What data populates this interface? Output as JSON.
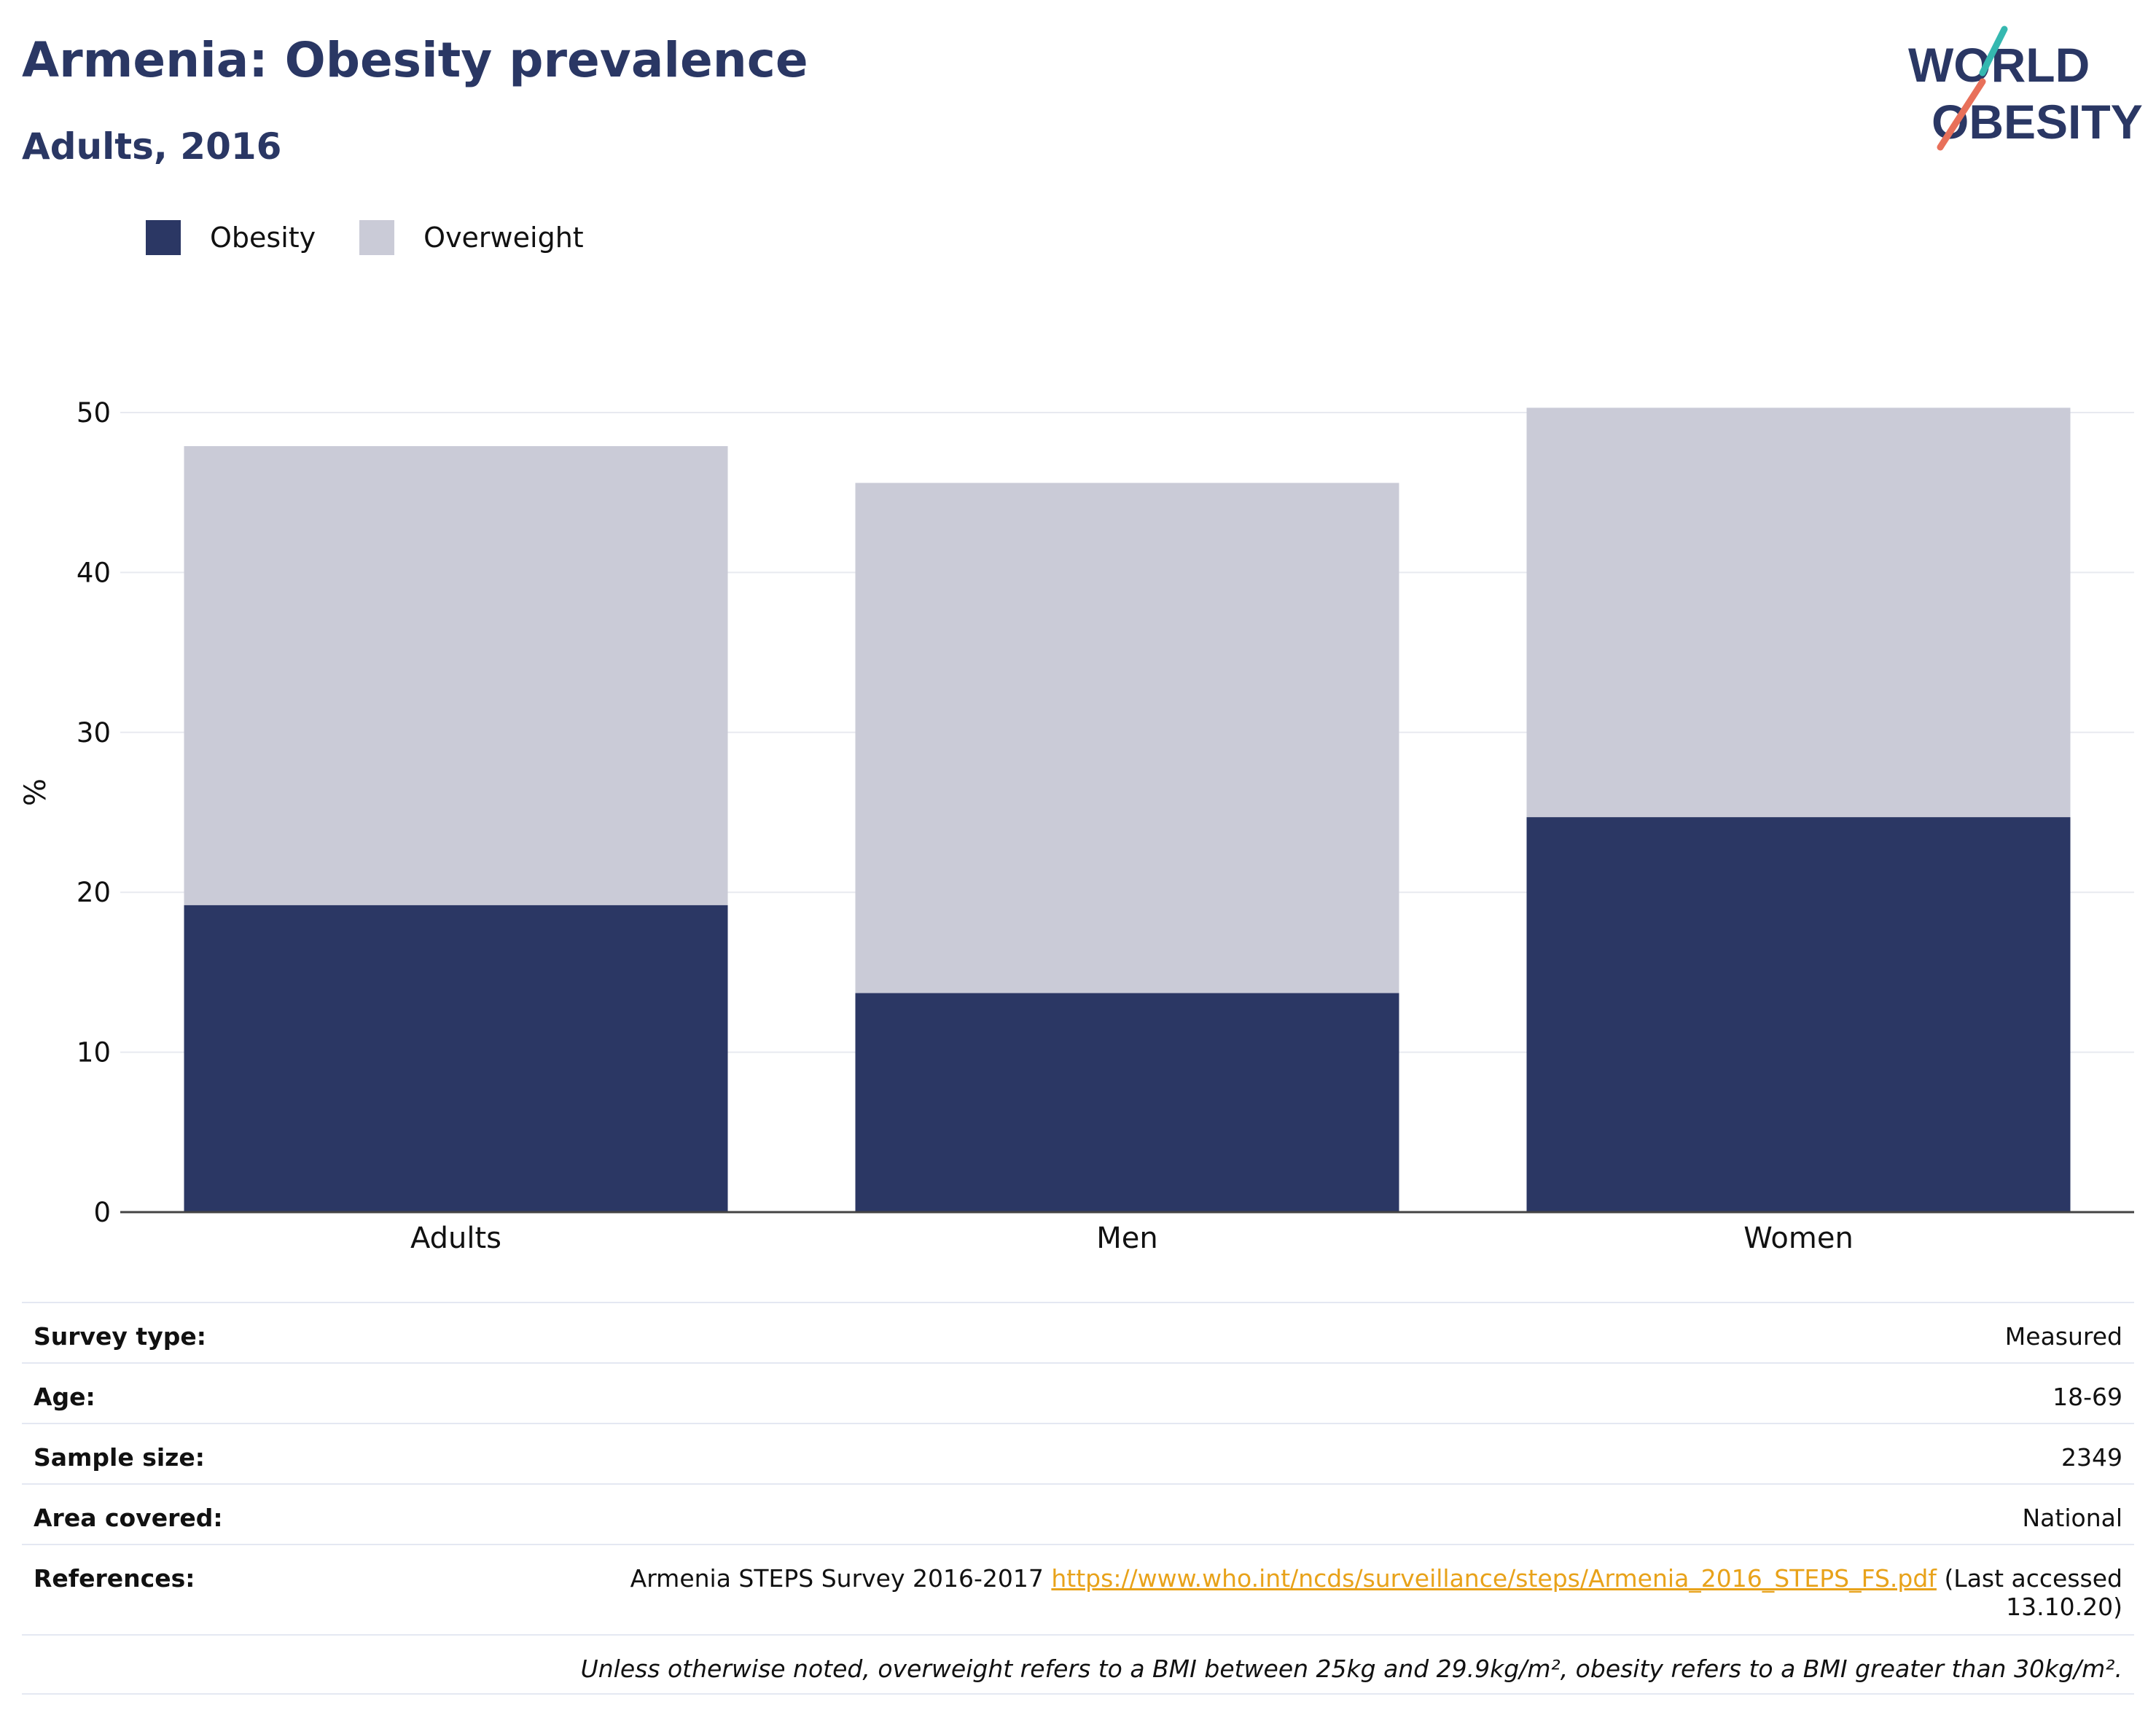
{
  "header": {
    "title": "Armenia: Obesity prevalence",
    "subtitle": "Adults, 2016",
    "logo_line1": "WORLD",
    "logo_line2": "OBESITY"
  },
  "colors": {
    "obesity": "#2b3764",
    "overweight": "#cacbd7",
    "title": "#2a3764",
    "link": "#e8a21a",
    "logo_teal": "#35b8b0",
    "logo_coral": "#e8705a"
  },
  "chart_data": {
    "type": "bar",
    "stacked": true,
    "categories": [
      "Adults",
      "Men",
      "Women"
    ],
    "series": [
      {
        "name": "Obesity",
        "values": [
          19.2,
          13.7,
          24.7
        ]
      },
      {
        "name": "Overweight",
        "values": [
          28.7,
          31.9,
          25.6
        ]
      }
    ],
    "ylabel": "%",
    "ylim": [
      0,
      50
    ],
    "yticks": [
      "0",
      "10",
      "20",
      "30",
      "40",
      "50"
    ],
    "grid": true,
    "legend_position": "top-left"
  },
  "info": {
    "survey_type": {
      "label": "Survey type:",
      "value": "Measured"
    },
    "age": {
      "label": "Age:",
      "value": "18-69"
    },
    "sample_size": {
      "label": "Sample size:",
      "value": "2349"
    },
    "area_covered": {
      "label": "Area covered:",
      "value": "National"
    },
    "references": {
      "label": "References:",
      "text": "Armenia STEPS Survey 2016-2017",
      "url": "https://www.who.int/ncds/surveillance/steps/Armenia_2016_STEPS_FS.pdf",
      "suffix_line1": "(Last accessed",
      "suffix_line2": "13.10.20)"
    },
    "note": "Unless otherwise noted, overweight refers to a BMI between 25kg and 29.9kg/m², obesity refers to a BMI greater than 30kg/m²."
  }
}
